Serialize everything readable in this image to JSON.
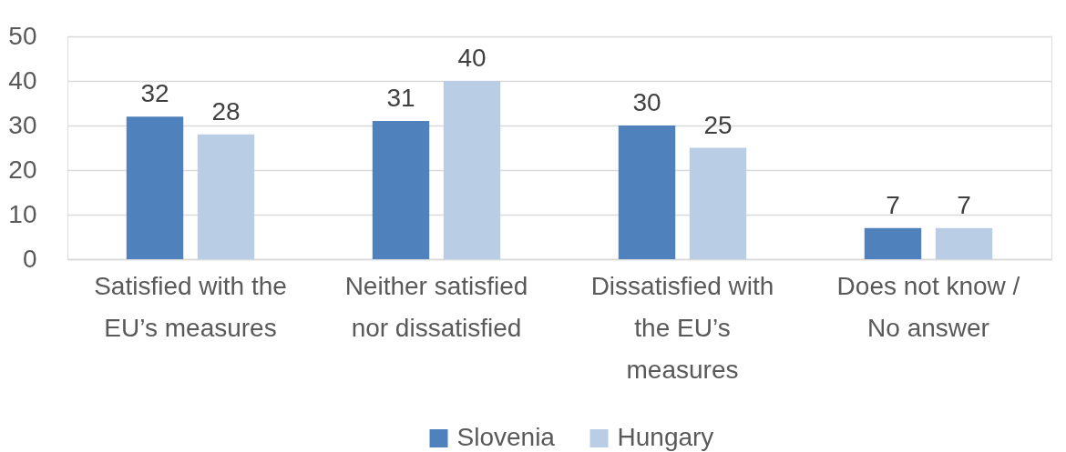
{
  "chart_data": {
    "type": "bar",
    "categories": [
      "Satisfied with the EU’s measures",
      "Neither satisfied nor dissatisfied",
      "Dissatisfied with the EU’s measures",
      "Does not know / No answer"
    ],
    "series": [
      {
        "name": "Slovenia",
        "color": "#4f81bd",
        "values": [
          32,
          31,
          30,
          7
        ]
      },
      {
        "name": "Hungary",
        "color": "#b9cde5",
        "values": [
          28,
          40,
          25,
          7
        ]
      }
    ],
    "ylim": [
      0,
      50
    ],
    "yticks": [
      0,
      10,
      20,
      30,
      40,
      50
    ],
    "grid": "y",
    "legend": "bottom",
    "data_labels": true
  }
}
